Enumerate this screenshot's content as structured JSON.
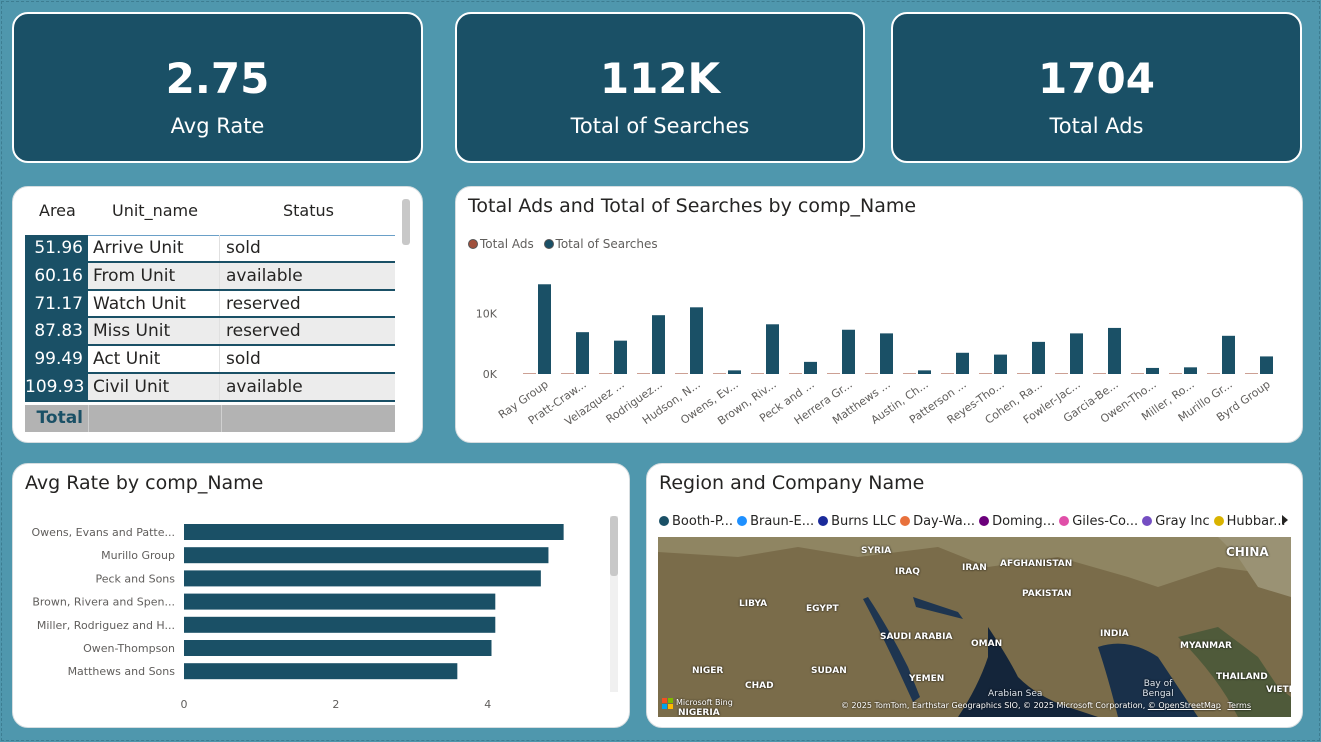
{
  "kpis": [
    {
      "value": "2.75",
      "label": "Avg Rate"
    },
    {
      "value": "112K",
      "label": "Total of Searches"
    },
    {
      "value": "1704",
      "label": "Total Ads"
    }
  ],
  "table": {
    "headers": [
      "Area",
      "Unit_name",
      "Status"
    ],
    "rows": [
      {
        "area": "51.96",
        "unit": "Arrive Unit",
        "status": "sold"
      },
      {
        "area": "60.16",
        "unit": "From Unit",
        "status": "available"
      },
      {
        "area": "71.17",
        "unit": "Watch Unit",
        "status": "reserved"
      },
      {
        "area": "87.83",
        "unit": "Miss Unit",
        "status": "reserved"
      },
      {
        "area": "99.49",
        "unit": "Act Unit",
        "status": "sold"
      },
      {
        "area": "109.93",
        "unit": "Civil Unit",
        "status": "available"
      }
    ],
    "total_label": "Total"
  },
  "chart_data": [
    {
      "type": "bar",
      "title": "Total Ads and Total of Searches by comp_Name",
      "categories": [
        "Ray Group",
        "Pratt-Craw...",
        "Velazquez ...",
        "Rodriguez...",
        "Hudson, N...",
        "Owens, Ev...",
        "Brown, Riv...",
        "Peck and ...",
        "Herrera Gr...",
        "Matthews ...",
        "Austin, Ch...",
        "Patterson ...",
        "Reyes-Tho...",
        "Cohen, Ra...",
        "Fowler-Jac...",
        "Garcia-Be...",
        "Owen-Tho...",
        "Miller, Ro...",
        "Murillo Gr...",
        "Byrd Group"
      ],
      "series": [
        {
          "name": "Total Ads",
          "color": "#a0503c",
          "values": [
            90,
            90,
            90,
            90,
            90,
            90,
            90,
            90,
            90,
            90,
            90,
            90,
            90,
            90,
            90,
            90,
            90,
            90,
            90,
            90
          ]
        },
        {
          "name": "Total of Searches",
          "color": "#1a5066",
          "values": [
            14800,
            6900,
            5500,
            9700,
            11000,
            600,
            8200,
            2000,
            7300,
            6700,
            600,
            3500,
            3200,
            5300,
            6700,
            7600,
            1000,
            1100,
            6300,
            2900
          ]
        }
      ],
      "yticks": [
        "0K",
        "10K"
      ],
      "ylim": [
        0,
        16000
      ],
      "legend_position": "top-left"
    },
    {
      "type": "bar",
      "orientation": "horizontal",
      "title": "Avg Rate by comp_Name",
      "categories": [
        "Owens, Evans and Patte...",
        "Murillo Group",
        "Peck and Sons",
        "Brown, Rivera and Spen...",
        "Miller, Rodriguez and H...",
        "Owen-Thompson",
        "Matthews and Sons"
      ],
      "values": [
        5.0,
        4.8,
        4.7,
        4.1,
        4.1,
        4.05,
        3.6
      ],
      "xticks": [
        "0",
        "2",
        "4"
      ],
      "xlim": [
        0,
        5.4
      ],
      "color": "#1a5066"
    }
  ],
  "map": {
    "title": "Region and Company Name",
    "legend": [
      {
        "name": "Booth-P...",
        "color": "#1a5066"
      },
      {
        "name": "Braun-E...",
        "color": "#1e90ff"
      },
      {
        "name": "Burns LLC",
        "color": "#1a2a9a"
      },
      {
        "name": "Day-Wa...",
        "color": "#e8713c"
      },
      {
        "name": "Doming...",
        "color": "#6b007b"
      },
      {
        "name": "Giles-Co...",
        "color": "#e04fa8"
      },
      {
        "name": "Gray Inc",
        "color": "#744ec2"
      },
      {
        "name": "Hubbar...",
        "color": "#d9b300"
      }
    ],
    "labels": [
      "SYRIA",
      "IRAQ",
      "IRAN",
      "AFGHANISTAN",
      "CHINA",
      "LIBYA",
      "EGYPT",
      "PAKISTAN",
      "SAUDI ARABIA",
      "INDIA",
      "OMAN",
      "MYANMAR",
      "NIGER",
      "SUDAN",
      "CHAD",
      "YEMEN",
      "THAILAND",
      "Arabian Sea",
      "Bay of Bengal",
      "NIGERIA",
      "VIETN"
    ],
    "bing_label": "Microsoft Bing",
    "copyright": "© 2025 TomTom, Earthstar Geographics SIO, © 2025 Microsoft Corporation,",
    "osm_link": "© OpenStreetMap",
    "terms": "Terms"
  }
}
